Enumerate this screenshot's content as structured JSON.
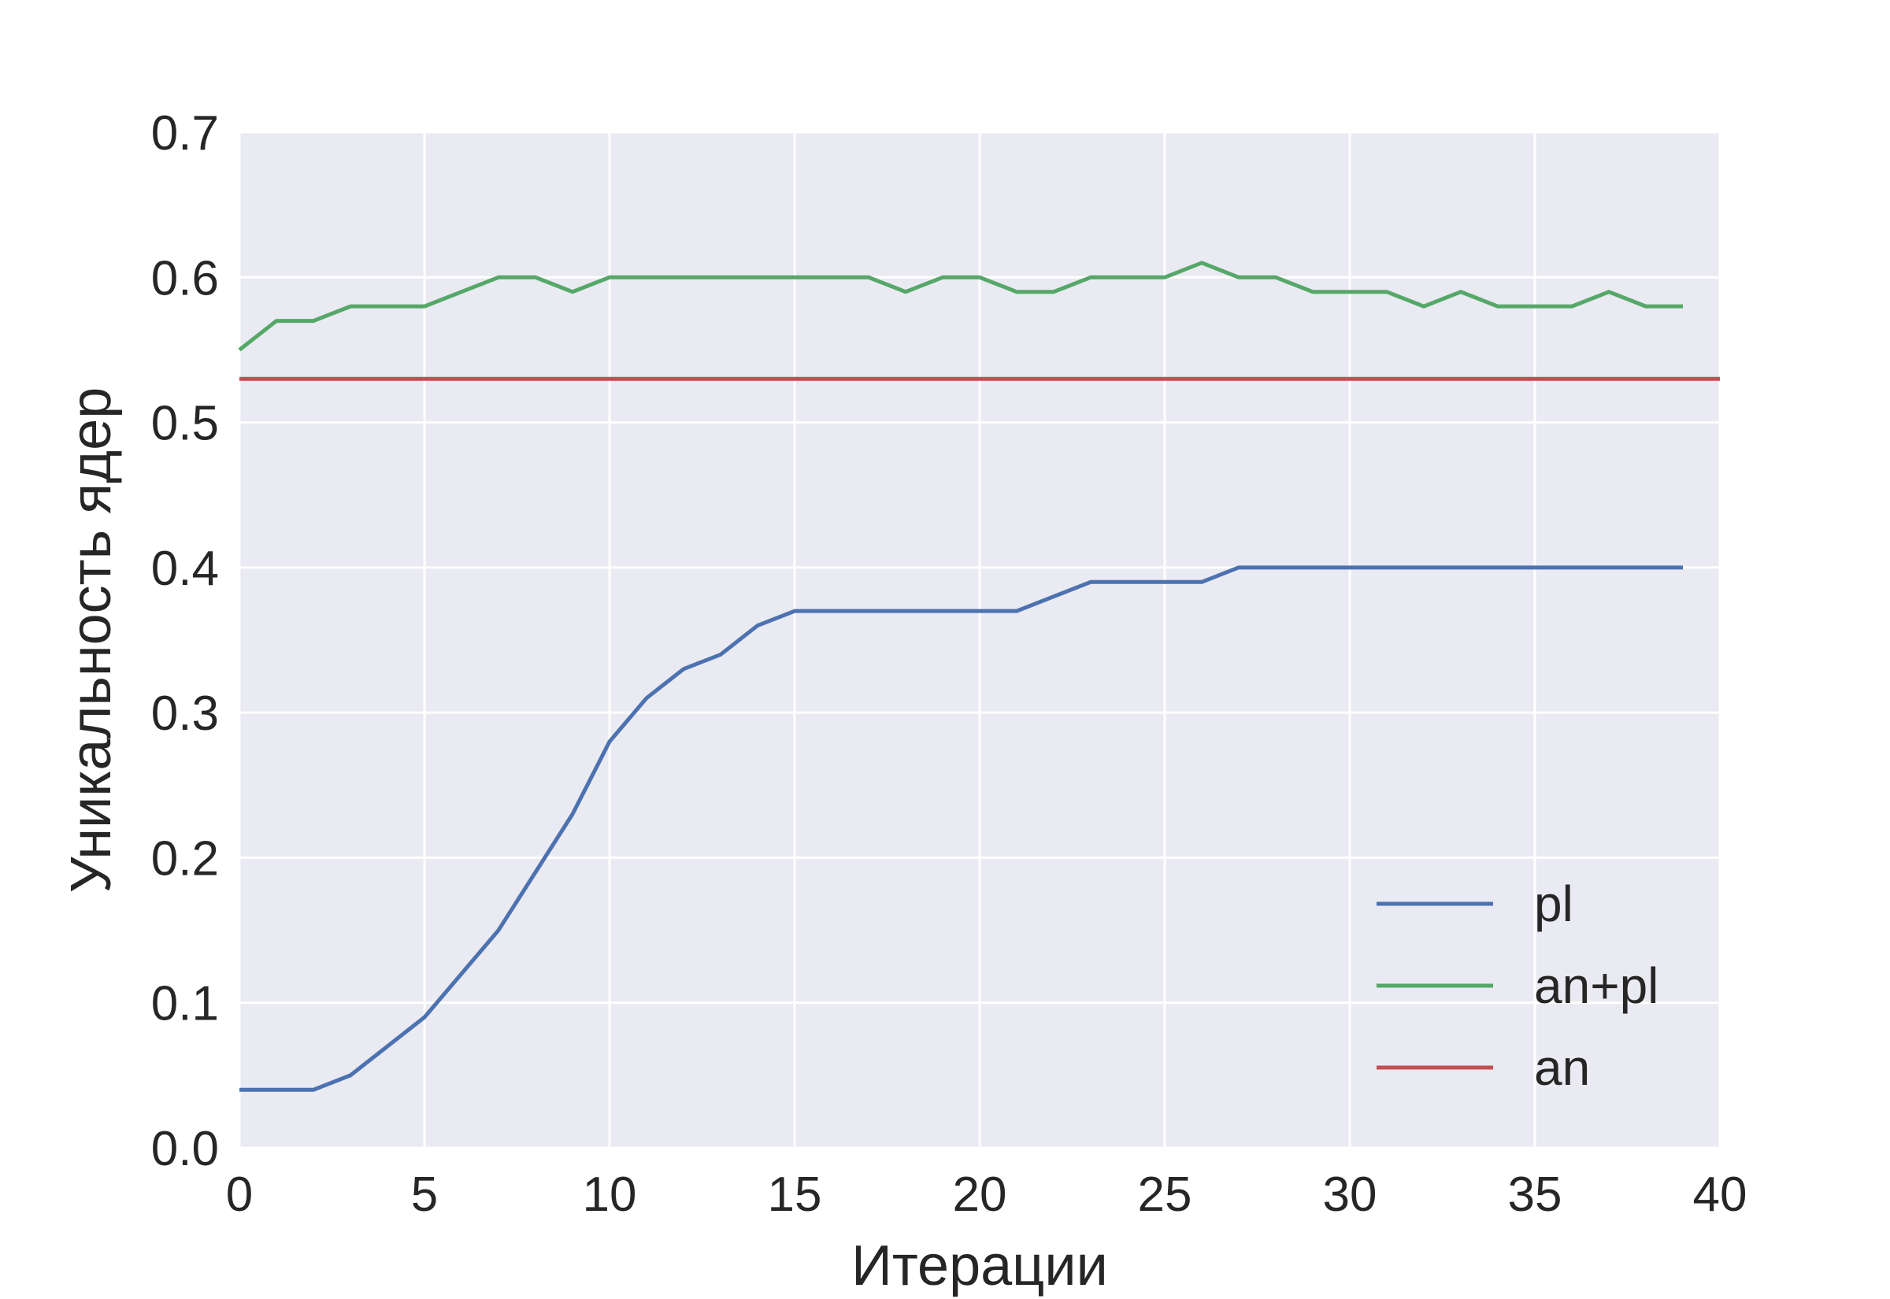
{
  "chart_data": {
    "type": "line",
    "xlabel": "Итерации",
    "ylabel": "Уникальность ядер",
    "xlim": [
      0,
      40
    ],
    "ylim": [
      0,
      0.7
    ],
    "xticks": [
      "0",
      "5",
      "10",
      "15",
      "20",
      "25",
      "30",
      "35",
      "40"
    ],
    "yticks": [
      "0.0",
      "0.1",
      "0.2",
      "0.3",
      "0.4",
      "0.5",
      "0.6",
      "0.7"
    ],
    "grid": true,
    "legend_position": "bottom-right",
    "x": [
      0,
      1,
      2,
      3,
      4,
      5,
      6,
      7,
      8,
      9,
      10,
      11,
      12,
      13,
      14,
      15,
      16,
      17,
      18,
      19,
      20,
      21,
      22,
      23,
      24,
      25,
      26,
      27,
      28,
      29,
      30,
      31,
      32,
      33,
      34,
      35,
      36,
      37,
      38,
      39
    ],
    "series": [
      {
        "name": "pl",
        "color": "#4c72b0",
        "values": [
          0.04,
          0.04,
          0.04,
          0.05,
          0.07,
          0.09,
          0.12,
          0.15,
          0.19,
          0.23,
          0.28,
          0.31,
          0.33,
          0.34,
          0.36,
          0.37,
          0.37,
          0.37,
          0.37,
          0.37,
          0.37,
          0.37,
          0.38,
          0.39,
          0.39,
          0.39,
          0.39,
          0.4,
          0.4,
          0.4,
          0.4,
          0.4,
          0.4,
          0.4,
          0.4,
          0.4,
          0.4,
          0.4,
          0.4,
          0.4
        ]
      },
      {
        "name": "an+pl",
        "color": "#55a868",
        "values": [
          0.55,
          0.57,
          0.57,
          0.58,
          0.58,
          0.58,
          0.59,
          0.6,
          0.6,
          0.59,
          0.6,
          0.6,
          0.6,
          0.6,
          0.6,
          0.6,
          0.6,
          0.6,
          0.59,
          0.6,
          0.6,
          0.59,
          0.59,
          0.6,
          0.6,
          0.6,
          0.61,
          0.6,
          0.6,
          0.59,
          0.59,
          0.59,
          0.58,
          0.59,
          0.58,
          0.58,
          0.58,
          0.59,
          0.58,
          0.58
        ]
      },
      {
        "name": "an",
        "color": "#c44e52",
        "constant": 0.53,
        "x_range": [
          0,
          40
        ]
      }
    ]
  },
  "style": {
    "plot_background": "#eaeaf2",
    "grid_color": "#ffffff",
    "text_color": "#262626"
  }
}
